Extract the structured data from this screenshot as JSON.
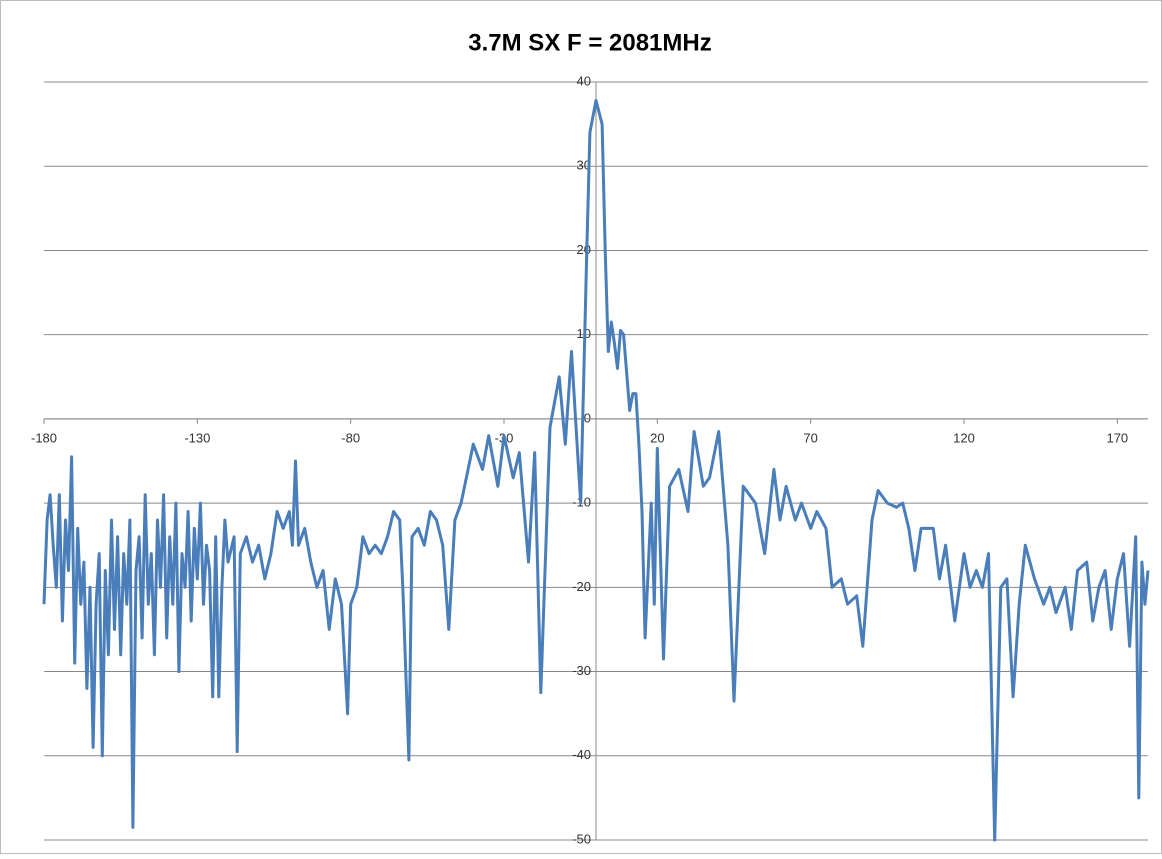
{
  "chart_data": {
    "type": "line",
    "title": "3.7M SX F = 2081MHz",
    "x": [
      -180,
      -179,
      -178,
      -177,
      -176,
      -175,
      -174,
      -173,
      -172,
      -171,
      -170,
      -169,
      -168,
      -167,
      -166,
      -165,
      -164,
      -163,
      -162,
      -161,
      -160,
      -159,
      -158,
      -157,
      -156,
      -155,
      -154,
      -153,
      -152,
      -151,
      -150,
      -149,
      -148,
      -147,
      -146,
      -145,
      -144,
      -143,
      -142,
      -141,
      -140,
      -139,
      -138,
      -137,
      -136,
      -135,
      -134,
      -133,
      -132,
      -131,
      -130,
      -129,
      -128,
      -127,
      -126,
      -125,
      -124,
      -123,
      -122,
      -121,
      -120,
      -118,
      -117,
      -116,
      -114,
      -112,
      -110,
      -108,
      -106,
      -104,
      -102,
      -100,
      -99,
      -98,
      -97,
      -95,
      -93,
      -91,
      -89,
      -87,
      -85,
      -83,
      -81,
      -80,
      -78,
      -76,
      -74,
      -72,
      -70,
      -68,
      -66,
      -64,
      -63,
      -61,
      -60,
      -58,
      -56,
      -54,
      -52,
      -50,
      -48,
      -46,
      -44,
      -40,
      -37,
      -35,
      -32,
      -30,
      -27,
      -25,
      -22,
      -20,
      -18,
      -15,
      -12,
      -10,
      -8,
      -6,
      -5,
      -3,
      -2,
      0,
      2,
      3,
      4,
      5,
      6,
      7,
      8,
      9,
      11,
      12,
      13,
      14,
      15,
      16,
      18,
      19,
      20,
      22,
      24,
      27,
      30,
      32,
      35,
      37,
      40,
      43,
      45,
      48,
      52,
      55,
      58,
      60,
      62,
      65,
      67,
      70,
      72,
      75,
      77,
      80,
      82,
      85,
      87,
      90,
      92,
      95,
      98,
      100,
      102,
      104,
      106,
      110,
      112,
      114,
      117,
      120,
      122,
      124,
      126,
      128,
      130,
      132,
      134,
      136,
      138,
      140,
      143,
      146,
      148,
      150,
      153,
      155,
      157,
      160,
      162,
      164,
      166,
      168,
      170,
      172,
      174,
      176,
      177,
      178,
      179,
      180
    ],
    "values": [
      -22,
      -12,
      -9,
      -15,
      -20,
      -9,
      -24,
      -12,
      -18,
      -4.5,
      -29,
      -13,
      -22,
      -17,
      -32,
      -20,
      -39,
      -22,
      -16,
      -40,
      -18,
      -28,
      -12,
      -25,
      -14,
      -28,
      -16,
      -22,
      -12,
      -48.5,
      -18,
      -14,
      -26,
      -9,
      -22,
      -16,
      -28,
      -12,
      -20,
      -9,
      -26,
      -14,
      -22,
      -10,
      -30,
      -16,
      -20,
      -11,
      -24,
      -13,
      -19,
      -10,
      -22,
      -15,
      -18,
      -33,
      -14,
      -33,
      -20,
      -12,
      -17,
      -14,
      -39.5,
      -16,
      -14,
      -17,
      -15,
      -19,
      -16,
      -11,
      -13,
      -11,
      -15,
      -5,
      -15,
      -13,
      -17,
      -20,
      -18,
      -25,
      -19,
      -22,
      -35,
      -22,
      -20,
      -14,
      -16,
      -15,
      -16,
      -14,
      -11,
      -12,
      -20,
      -40.5,
      -14,
      -13,
      -15,
      -11,
      -12,
      -15,
      -25,
      -12,
      -10,
      -3,
      -6,
      -2,
      -8,
      -2,
      -7,
      -4,
      -17,
      -4,
      -32.5,
      -1,
      5,
      -3,
      8,
      -4,
      -10,
      20,
      34,
      37.8,
      35,
      20,
      8,
      11.5,
      9,
      6,
      10.5,
      10,
      1,
      3,
      3,
      -3,
      -11,
      -26,
      -10,
      -22,
      -3.5,
      -28.5,
      -8,
      -6,
      -11,
      -1.5,
      -8,
      -7,
      -1.5,
      -15,
      -33.5,
      -8,
      -10,
      -16,
      -6,
      -12,
      -8,
      -12,
      -10,
      -13,
      -11,
      -13,
      -20,
      -19,
      -22,
      -21,
      -27,
      -12,
      -8.5,
      -10,
      -10.5,
      -10,
      -13,
      -18,
      -13,
      -13,
      -19,
      -15,
      -24,
      -16,
      -20,
      -18,
      -20,
      -16,
      -50,
      -20,
      -19,
      -33,
      -22,
      -15,
      -19,
      -22,
      -20,
      -23,
      -20,
      -25,
      -18,
      -17,
      -24,
      -20,
      -18,
      -25,
      -19,
      -16,
      -27,
      -14,
      -45,
      -17,
      -22,
      -18
    ],
    "color": "#4a7ebb",
    "xlim": [
      -180,
      180
    ],
    "xticks": [
      -180,
      -130,
      -80,
      -30,
      20,
      70,
      120,
      170
    ],
    "ylim": [
      -50,
      40
    ],
    "yticks": [
      -50,
      -40,
      -30,
      -20,
      -10,
      0,
      10,
      20,
      30,
      40
    ],
    "grid": true
  }
}
